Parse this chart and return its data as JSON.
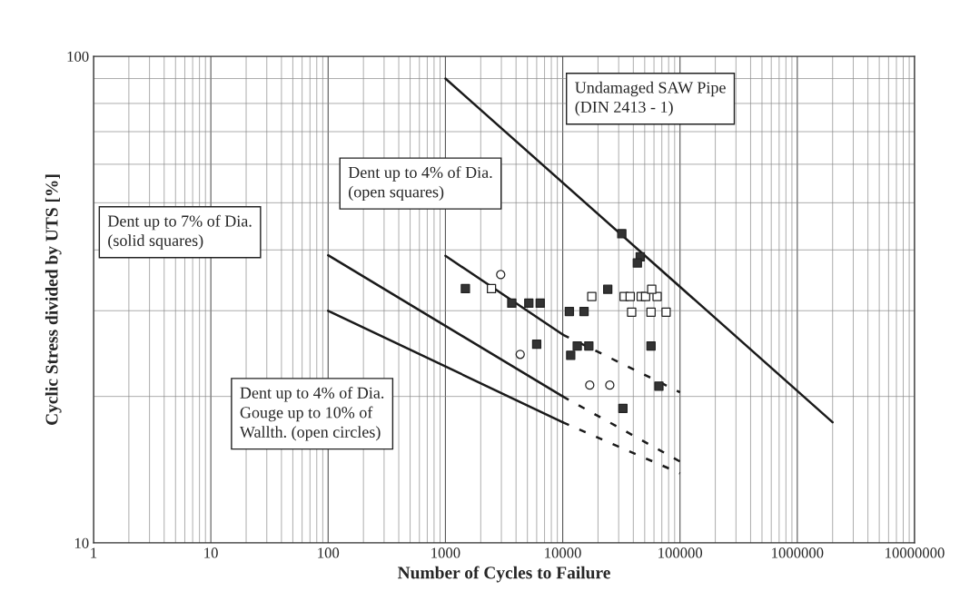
{
  "chart_data": {
    "type": "scatter",
    "xlabel": "Number of Cycles to Failure",
    "ylabel": "Cyclic Stress divided by UTS [%]",
    "log": "xy",
    "grid": true,
    "xlim": [
      1,
      10000000
    ],
    "ylim": [
      10,
      100
    ],
    "xticks": [
      1,
      10,
      100,
      1000,
      10000,
      100000,
      1000000,
      10000000
    ],
    "yticks": [
      10,
      100
    ],
    "annotations": [
      "Undamaged SAW Pipe\n(DIN 2413 - 1)",
      "Dent up to 4% of Dia.\n(open squares)",
      "Dent up to 7% of Dia.\n(solid squares)",
      "Dent up to 4% of Dia.\nGouge up to 10% of\nWallth. (open circles)"
    ],
    "series": [
      {
        "type": "line",
        "color": "#1a1a1a",
        "line_style": "solid",
        "x": [
          1000,
          2000000
        ],
        "values": [
          90,
          17.7
        ]
      },
      {
        "type": "line",
        "color": "#1a1a1a",
        "line_style": "solid",
        "x": [
          1000,
          10000
        ],
        "values": [
          38.9,
          26.8
        ]
      },
      {
        "type": "line",
        "color": "#1a1a1a",
        "line_style": "dashed",
        "x": [
          10000,
          100000
        ],
        "values": [
          26.8,
          20.4
        ]
      },
      {
        "type": "line",
        "color": "#1a1a1a",
        "line_style": "solid",
        "x": [
          100,
          10000
        ],
        "values": [
          39,
          20
        ]
      },
      {
        "type": "line",
        "color": "#1a1a1a",
        "line_style": "dashed",
        "x": [
          10000,
          100000
        ],
        "values": [
          20,
          14.7
        ]
      },
      {
        "type": "line",
        "color": "#1a1a1a",
        "line_style": "solid",
        "x": [
          100,
          10000
        ],
        "values": [
          30,
          17.7
        ]
      },
      {
        "type": "line",
        "color": "#1a1a1a",
        "line_style": "dashed",
        "x": [
          10000,
          100000
        ],
        "values": [
          17.7,
          13.9
        ]
      },
      {
        "marker": "square",
        "color": "#333333",
        "x": [
          31900,
          45800,
          43300,
          1480,
          24200,
          3680,
          5140,
          6430,
          11400,
          15200,
          6000,
          13300,
          16700,
          11700,
          56600,
          66100,
          32600
        ],
        "values": [
          43.2,
          38.7,
          37.6,
          33.3,
          33.2,
          31.1,
          31.1,
          31.1,
          29.9,
          29.9,
          25.6,
          25.4,
          25.4,
          24.3,
          25.4,
          21.0,
          18.9
        ]
      },
      {
        "marker": "square",
        "color": "#ffffff",
        "x": [
          2470,
          17700,
          33400,
          37600,
          46700,
          50900,
          63800,
          57400,
          38700,
          56600,
          76100
        ],
        "values": [
          33.3,
          32.1,
          32.1,
          32.1,
          32.1,
          32.1,
          32.1,
          33.2,
          29.8,
          29.8,
          29.8
        ]
      },
      {
        "marker": "circle",
        "color": "#ffffff",
        "x": [
          2960,
          4340,
          17000,
          25200
        ],
        "values": [
          35.6,
          24.4,
          21.1,
          21.1
        ]
      }
    ]
  }
}
